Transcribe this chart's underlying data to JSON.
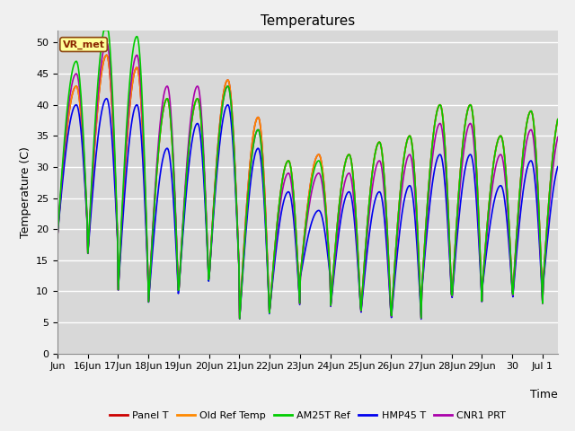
{
  "title": "Temperatures",
  "xlabel": "Time",
  "ylabel": "Temperature (C)",
  "station_label": "VR_met",
  "ylim": [
    0,
    52
  ],
  "yticks": [
    0,
    5,
    10,
    15,
    20,
    25,
    30,
    35,
    40,
    45,
    50
  ],
  "xtick_labels": [
    "Jun",
    "16Jun",
    "17Jun",
    "18Jun",
    "19Jun",
    "20Jun",
    "21Jun",
    "22Jun",
    "23Jun",
    "24Jun",
    "25Jun",
    "26Jun",
    "27Jun",
    "28Jun",
    "29Jun",
    "30",
    "Jul 1"
  ],
  "series_order": [
    "Panel_T",
    "OldRefTemp",
    "AM25T_Ref",
    "HMP45_T",
    "CNR1_PRT"
  ],
  "series": {
    "Panel_T": {
      "color": "#cc0000",
      "lw": 1.2,
      "label": "Panel T"
    },
    "OldRefTemp": {
      "color": "#ff8800",
      "lw": 1.2,
      "label": "Old Ref Temp"
    },
    "AM25T_Ref": {
      "color": "#00cc00",
      "lw": 1.2,
      "label": "AM25T Ref"
    },
    "HMP45_T": {
      "color": "#0000ee",
      "lw": 1.2,
      "label": "HMP45 T"
    },
    "CNR1_PRT": {
      "color": "#aa00aa",
      "lw": 1.2,
      "label": "CNR1 PRT"
    }
  },
  "plot_bg_color": "#d8d8d8",
  "fig_bg_color": "#f0f0f0",
  "grid_color": "#ffffff",
  "title_fontsize": 11,
  "axis_label_fontsize": 9,
  "tick_fontsize": 8,
  "n_days": 16.5,
  "pts_per_day": 48,
  "peaks_main": [
    43,
    48,
    46,
    41,
    41,
    44,
    38,
    31,
    32,
    32,
    34,
    35,
    40,
    40,
    35,
    39,
    39
  ],
  "troughs_main": [
    19,
    16,
    10,
    8,
    10,
    12,
    5,
    7,
    12,
    7,
    6,
    5,
    9,
    8,
    10,
    8,
    10
  ],
  "green_extra": [
    4,
    5,
    5,
    0,
    0,
    -1,
    -2,
    0,
    -1,
    0,
    0,
    0,
    0,
    0,
    0,
    0,
    0
  ],
  "blue_offsets": [
    -3,
    -7,
    -6,
    -8,
    -4,
    -4,
    -5,
    -5,
    -9,
    -6,
    -8,
    -8,
    -8,
    -8,
    -8,
    -8,
    -8
  ],
  "purple_offsets": [
    2,
    2,
    2,
    2,
    2,
    -1,
    -2,
    -2,
    -3,
    -3,
    -3,
    -3,
    -3,
    -3,
    -3,
    -3,
    -3
  ]
}
